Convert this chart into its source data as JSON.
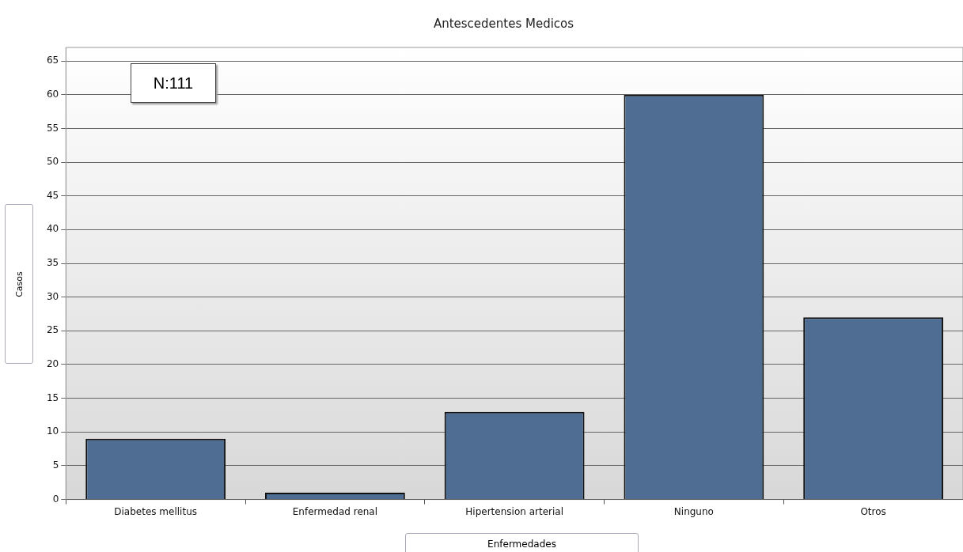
{
  "chart_data": {
    "type": "bar",
    "title": "Antescedentes Medicos",
    "xlabel": "Enfermedades",
    "ylabel": "Casos",
    "categories": [
      "Diabetes mellitus",
      "Enfermedad renal",
      "Hipertension arterial",
      "Ninguno",
      "Otros"
    ],
    "values": [
      9,
      1,
      13,
      60,
      27
    ],
    "color": "#4f6d92",
    "ylim": [
      0,
      67
    ],
    "yticks": [
      0,
      5,
      10,
      15,
      20,
      25,
      30,
      35,
      40,
      45,
      50,
      55,
      60,
      65
    ],
    "grid": "y",
    "legend": false,
    "annotations": [
      "N:111"
    ]
  }
}
